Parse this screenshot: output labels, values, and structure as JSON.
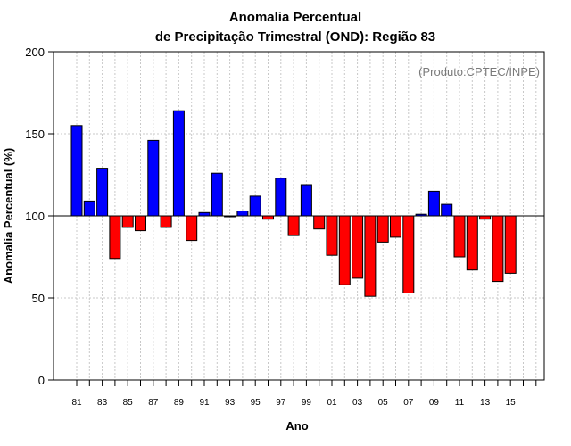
{
  "chart_data": {
    "type": "bar",
    "title": [
      "Anomalia Percentual",
      "de Precipitação Trimestral (OND): Região 83"
    ],
    "credit": "(Produto:CPTEC/INPE)",
    "xlabel": "Ano",
    "ylabel": "Anomalia Percentual (%)",
    "ylim": [
      0,
      200
    ],
    "yticks": [
      0,
      50,
      100,
      150,
      200
    ],
    "baseline": 100,
    "categories": [
      "81",
      "82",
      "83",
      "84",
      "85",
      "86",
      "87",
      "88",
      "89",
      "90",
      "91",
      "92",
      "93",
      "94",
      "95",
      "96",
      "97",
      "98",
      "99",
      "00",
      "01",
      "02",
      "03",
      "04",
      "05",
      "06",
      "07",
      "08",
      "09",
      "10",
      "11",
      "12",
      "13",
      "14",
      "15",
      "16",
      "17"
    ],
    "xtick_labels": [
      "81",
      "83",
      "85",
      "87",
      "89",
      "91",
      "93",
      "95",
      "97",
      "99",
      "01",
      "03",
      "05",
      "07",
      "09",
      "11",
      "13",
      "15"
    ],
    "values": [
      155,
      109,
      129,
      74,
      93,
      91,
      146,
      93,
      164,
      85,
      102,
      126,
      100,
      103,
      112,
      98,
      123,
      88,
      119,
      92,
      76,
      58,
      62,
      51,
      84,
      87,
      53,
      101,
      115,
      107,
      75,
      67,
      98,
      60,
      65,
      null,
      null
    ],
    "colors": {
      "above": "#0000ff",
      "below": "#ff0000"
    },
    "grid": true
  }
}
